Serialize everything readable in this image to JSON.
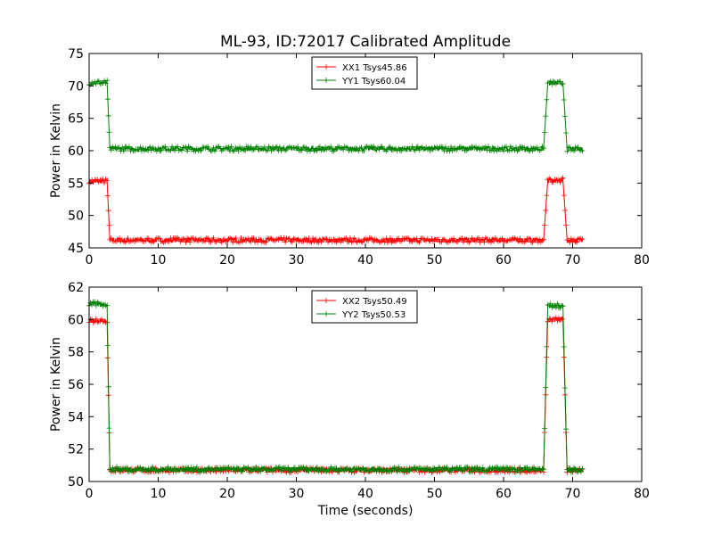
{
  "figure": {
    "title": "ML-93, ID:72017 Calibrated Amplitude"
  },
  "colors": {
    "xx": "#ff0000",
    "yy": "#008000",
    "axes": "#000000",
    "background": "#ffffff"
  },
  "chart_data": [
    {
      "type": "line",
      "title": "ML-93, ID:72017 Calibrated Amplitude",
      "xlabel": "",
      "ylabel": "Power in Kelvin",
      "xlim": [
        0,
        80
      ],
      "ylim": [
        45,
        75
      ],
      "xticks": [
        "0",
        "10",
        "20",
        "30",
        "40",
        "50",
        "60",
        "70",
        "80"
      ],
      "yticks": [
        "45",
        "50",
        "55",
        "60",
        "65",
        "70",
        "75"
      ],
      "grid": false,
      "legend": "top-center",
      "markers": "plus",
      "series": [
        {
          "name": "XX1 Tsys45.86",
          "color": "#ff0000",
          "segments": [
            {
              "x": [
                0.0,
                2.6
              ],
              "y": 55.3
            },
            {
              "x": [
                3.0,
                65.8
              ],
              "y": 46.2
            },
            {
              "x": [
                66.4,
                68.6
              ],
              "y": 55.4
            },
            {
              "x": [
                69.2,
                71.5
              ],
              "y": 46.2
            }
          ],
          "transitions": [
            [
              2.6,
              55.3,
              3.0,
              46.2
            ],
            [
              65.8,
              46.2,
              66.4,
              55.4
            ],
            [
              68.6,
              55.4,
              69.2,
              46.2
            ]
          ]
        },
        {
          "name": "YY1 Tsys60.04",
          "color": "#008000",
          "segments": [
            {
              "x": [
                0.0,
                2.6
              ],
              "y": 70.5
            },
            {
              "x": [
                3.0,
                65.8
              ],
              "y": 60.3
            },
            {
              "x": [
                66.4,
                68.6
              ],
              "y": 70.4
            },
            {
              "x": [
                69.2,
                71.5
              ],
              "y": 60.2
            }
          ],
          "transitions": [
            [
              2.6,
              70.5,
              3.0,
              60.3
            ],
            [
              65.8,
              60.3,
              66.4,
              70.4
            ],
            [
              68.6,
              70.4,
              69.2,
              60.2
            ]
          ]
        }
      ]
    },
    {
      "type": "line",
      "title": "",
      "xlabel": "Time (seconds)",
      "ylabel": "Power in Kelvin",
      "xlim": [
        0,
        80
      ],
      "ylim": [
        50,
        62
      ],
      "xticks": [
        "0",
        "10",
        "20",
        "30",
        "40",
        "50",
        "60",
        "70",
        "80"
      ],
      "yticks": [
        "50",
        "52",
        "54",
        "56",
        "58",
        "60",
        "62"
      ],
      "grid": false,
      "legend": "top-center",
      "markers": "plus",
      "series": [
        {
          "name": "XX2 Tsys50.49",
          "color": "#ff0000",
          "segments": [
            {
              "x": [
                0.0,
                2.6
              ],
              "y": 59.95
            },
            {
              "x": [
                3.0,
                65.8
              ],
              "y": 50.7
            },
            {
              "x": [
                66.4,
                68.6
              ],
              "y": 60.0
            },
            {
              "x": [
                69.2,
                71.5
              ],
              "y": 50.7
            }
          ],
          "transitions": [
            [
              2.6,
              59.95,
              3.0,
              50.7
            ],
            [
              65.8,
              50.7,
              66.4,
              60.0
            ],
            [
              68.6,
              60.0,
              69.2,
              50.7
            ]
          ]
        },
        {
          "name": "YY2 Tsys50.53",
          "color": "#008000",
          "segments": [
            {
              "x": [
                0.0,
                2.6
              ],
              "y": 60.95
            },
            {
              "x": [
                3.0,
                65.8
              ],
              "y": 50.75
            },
            {
              "x": [
                66.4,
                68.6
              ],
              "y": 60.85
            },
            {
              "x": [
                69.2,
                71.5
              ],
              "y": 50.7
            }
          ],
          "transitions": [
            [
              2.6,
              60.95,
              3.0,
              50.75
            ],
            [
              65.8,
              50.75,
              66.4,
              60.85
            ],
            [
              68.6,
              60.85,
              69.2,
              50.7
            ]
          ]
        }
      ]
    }
  ]
}
